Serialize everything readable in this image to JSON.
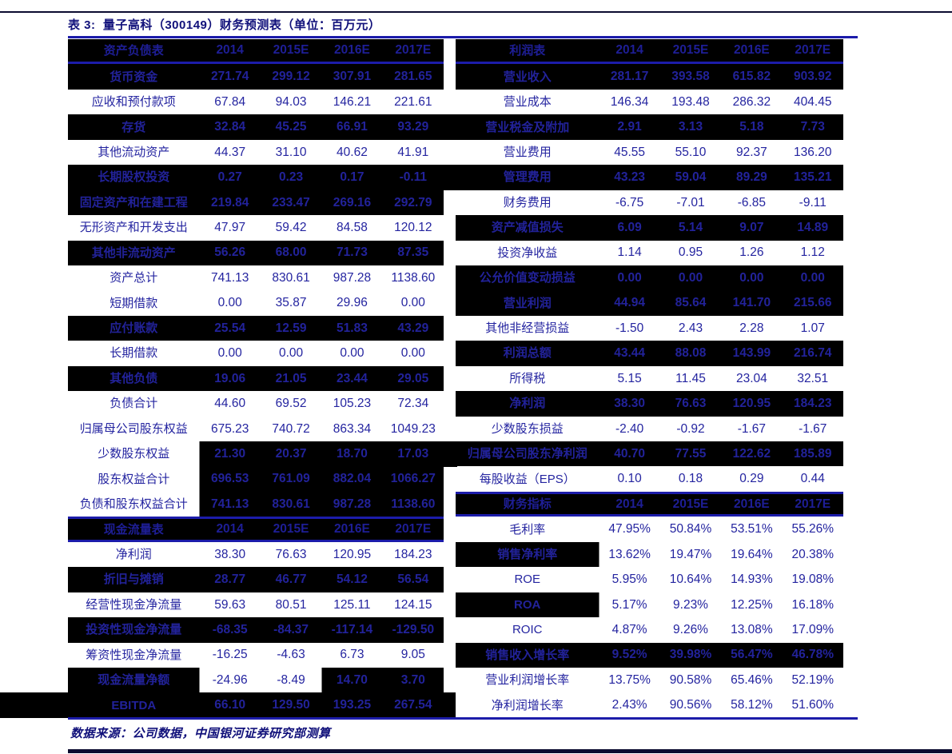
{
  "title": "表 3:  量子高科（300149）财务预测表（单位：百万元）",
  "footer": "数据来源：公司数据，中国银河证券研究部测算",
  "columns": [
    "2014",
    "2015E",
    "2016E",
    "2017E"
  ],
  "colors": {
    "navy_text": "#2424a0",
    "rule_line": "#1c1caa",
    "dark_row_background": "#000000"
  },
  "left": {
    "sections": [
      {
        "header": "资产负债表",
        "rows": [
          {
            "label": "货币资金",
            "values": [
              "271.74",
              "299.12",
              "307.91",
              "281.65"
            ],
            "shade": "dark"
          },
          {
            "label": "应收和预付款项",
            "values": [
              "67.84",
              "94.03",
              "146.21",
              "221.61"
            ],
            "shade": "light"
          },
          {
            "label": "存货",
            "values": [
              "32.84",
              "45.25",
              "66.91",
              "93.29"
            ],
            "shade": "dark"
          },
          {
            "label": "其他流动资产",
            "values": [
              "44.37",
              "31.10",
              "40.62",
              "41.91"
            ],
            "shade": "light"
          },
          {
            "label": "长期股权投资",
            "values": [
              "0.27",
              "0.23",
              "0.17",
              "-0.11"
            ],
            "shade": "dark"
          },
          {
            "label": "固定资产和在建工程",
            "values": [
              "219.84",
              "233.47",
              "269.16",
              "292.79"
            ],
            "shade": "dark"
          },
          {
            "label": "无形资产和开发支出",
            "values": [
              "47.97",
              "59.42",
              "84.58",
              "120.12"
            ],
            "shade": "light"
          },
          {
            "label": "其他非流动资产",
            "values": [
              "56.26",
              "68.00",
              "71.73",
              "87.35"
            ],
            "shade": "dark"
          },
          {
            "label": "资产总计",
            "values": [
              "741.13",
              "830.61",
              "987.28",
              "1138.60"
            ],
            "shade": "light"
          },
          {
            "label": "短期借款",
            "values": [
              "0.00",
              "35.87",
              "29.96",
              "0.00"
            ],
            "shade": "light"
          },
          {
            "label": "应付账款",
            "values": [
              "25.54",
              "12.59",
              "51.83",
              "43.29"
            ],
            "shade": "dark"
          },
          {
            "label": "长期借款",
            "values": [
              "0.00",
              "0.00",
              "0.00",
              "0.00"
            ],
            "shade": "light"
          },
          {
            "label": "其他负债",
            "values": [
              "19.06",
              "21.05",
              "23.44",
              "29.05"
            ],
            "shade": "dark"
          },
          {
            "label": "负债合计",
            "values": [
              "44.60",
              "69.52",
              "105.23",
              "72.34"
            ],
            "shade": "light"
          },
          {
            "label": "归属母公司股东权益",
            "values": [
              "675.23",
              "740.72",
              "863.34",
              "1049.23"
            ],
            "shade": "light"
          },
          {
            "label": "少数股东权益",
            "values": [
              "21.30",
              "20.37",
              "18.70",
              "17.03"
            ],
            "shade": "vdark"
          },
          {
            "label": "股东权益合计",
            "values": [
              "696.53",
              "761.09",
              "882.04",
              "1066.27"
            ],
            "shade": "vdark"
          },
          {
            "label": "负债和股东权益合计",
            "values": [
              "741.13",
              "830.61",
              "987.28",
              "1138.60"
            ],
            "shade": "vdark"
          }
        ]
      },
      {
        "header": "现金流量表",
        "rows": [
          {
            "label": "净利润",
            "values": [
              "38.30",
              "76.63",
              "120.95",
              "184.23"
            ],
            "shade": "light"
          },
          {
            "label": "折旧与摊销",
            "values": [
              "28.77",
              "46.77",
              "54.12",
              "56.54"
            ],
            "shade": "dark"
          },
          {
            "label": "经营性现金净流量",
            "values": [
              "59.63",
              "80.51",
              "125.11",
              "124.15"
            ],
            "shade": "light"
          },
          {
            "label": "投资性现金净流量",
            "values": [
              "-68.35",
              "-84.37",
              "-117.14",
              "-129.50"
            ],
            "shade": "dark"
          },
          {
            "label": "筹资性现金净流量",
            "values": [
              "-16.25",
              "-4.63",
              "6.73",
              "9.05"
            ],
            "shade": "light"
          },
          {
            "label": "现金流量净额",
            "values": [
              "-24.96",
              "-8.49",
              "14.70",
              "3.70"
            ],
            "shade": "cashnet"
          },
          {
            "label": "EBITDA",
            "values": [
              "66.10",
              "129.50",
              "193.25",
              "267.54"
            ],
            "shade": "dark"
          }
        ]
      }
    ]
  },
  "right": {
    "sections": [
      {
        "header": "利润表",
        "rows": [
          {
            "label": "营业收入",
            "values": [
              "281.17",
              "393.58",
              "615.82",
              "903.92"
            ],
            "shade": "dark"
          },
          {
            "label": "营业成本",
            "values": [
              "146.34",
              "193.48",
              "286.32",
              "404.45"
            ],
            "shade": "light"
          },
          {
            "label": "营业税金及附加",
            "values": [
              "2.91",
              "3.13",
              "5.18",
              "7.73"
            ],
            "shade": "dark"
          },
          {
            "label": "营业费用",
            "values": [
              "45.55",
              "55.10",
              "92.37",
              "136.20"
            ],
            "shade": "light"
          },
          {
            "label": "管理费用",
            "values": [
              "43.23",
              "59.04",
              "89.29",
              "135.21"
            ],
            "shade": "dark"
          },
          {
            "label": "财务费用",
            "values": [
              "-6.75",
              "-7.01",
              "-6.85",
              "-9.11"
            ],
            "shade": "light"
          },
          {
            "label": "资产减值损失",
            "values": [
              "6.09",
              "5.14",
              "9.07",
              "14.89"
            ],
            "shade": "dark"
          },
          {
            "label": "投资净收益",
            "values": [
              "1.14",
              "0.95",
              "1.26",
              "1.12"
            ],
            "shade": "light"
          },
          {
            "label": "公允价值变动损益",
            "values": [
              "0.00",
              "0.00",
              "0.00",
              "0.00"
            ],
            "shade": "dark"
          },
          {
            "label": "营业利润",
            "values": [
              "44.94",
              "85.64",
              "141.70",
              "215.66"
            ],
            "shade": "dark"
          },
          {
            "label": "其他非经营损益",
            "values": [
              "-1.50",
              "2.43",
              "2.28",
              "1.07"
            ],
            "shade": "light"
          },
          {
            "label": "利润总额",
            "values": [
              "43.44",
              "88.08",
              "143.99",
              "216.74"
            ],
            "shade": "dark"
          },
          {
            "label": "所得税",
            "values": [
              "5.15",
              "11.45",
              "23.04",
              "32.51"
            ],
            "shade": "light"
          },
          {
            "label": "净利润",
            "values": [
              "38.30",
              "76.63",
              "120.95",
              "184.23"
            ],
            "shade": "dark"
          },
          {
            "label": "少数股东损益",
            "values": [
              "-2.40",
              "-0.92",
              "-1.67",
              "-1.67"
            ],
            "shade": "light"
          },
          {
            "label": "归属母公司股东净利润",
            "values": [
              "40.70",
              "77.55",
              "122.62",
              "185.89"
            ],
            "shade": "dark"
          },
          {
            "label": "每股收益（EPS）",
            "values": [
              "0.10",
              "0.18",
              "0.29",
              "0.44"
            ],
            "shade": "light"
          }
        ]
      },
      {
        "header": "财务指标",
        "rows": [
          {
            "label": "毛利率",
            "values": [
              "47.95%",
              "50.84%",
              "53.51%",
              "55.26%"
            ],
            "shade": "light"
          },
          {
            "label": "销售净利率",
            "values": [
              "13.62%",
              "19.47%",
              "19.64%",
              "20.38%"
            ],
            "shade": "ldark"
          },
          {
            "label": "ROE",
            "values": [
              "5.95%",
              "10.64%",
              "14.93%",
              "19.08%"
            ],
            "shade": "light"
          },
          {
            "label": "ROA",
            "values": [
              "5.17%",
              "9.23%",
              "12.25%",
              "16.18%"
            ],
            "shade": "ldark"
          },
          {
            "label": "ROIC",
            "values": [
              "4.87%",
              "9.26%",
              "13.08%",
              "17.09%"
            ],
            "shade": "light"
          },
          {
            "label": "销售收入增长率",
            "values": [
              "9.52%",
              "39.98%",
              "56.47%",
              "46.78%"
            ],
            "shade": "dark"
          },
          {
            "label": "营业利润增长率",
            "values": [
              "13.75%",
              "90.58%",
              "65.46%",
              "52.19%"
            ],
            "shade": "light"
          },
          {
            "label": "净利润增长率",
            "values": [
              "2.43%",
              "90.56%",
              "58.12%",
              "51.60%"
            ],
            "shade": "light"
          }
        ]
      }
    ]
  }
}
